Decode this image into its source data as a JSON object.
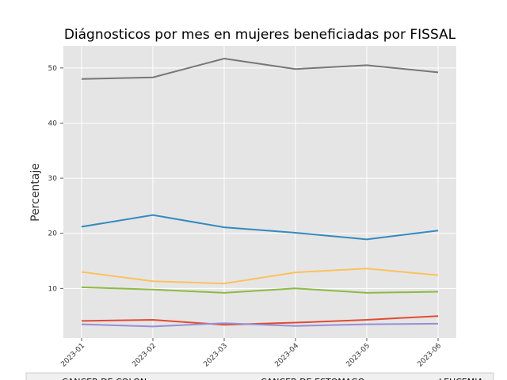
{
  "chart_data": {
    "type": "line",
    "title": "Diágnosticos por mes en mujeres beneficiadas por FISSAL",
    "xlabel": "",
    "ylabel": "Percentaje",
    "categories": [
      "2023-01",
      "2023-02",
      "2023-03",
      "2023-04",
      "2023-05",
      "2023-06"
    ],
    "ylim": [
      1,
      54
    ],
    "yticks": [
      10,
      20,
      30,
      40,
      50
    ],
    "grid": true,
    "legend_position": "bottom",
    "series": [
      {
        "values": [
          48.0,
          48.3,
          51.7,
          49.8,
          50.5,
          49.2
        ],
        "color": "#777777"
      },
      {
        "values": [
          21.2,
          23.3,
          21.1,
          20.1,
          18.9,
          20.5
        ],
        "color": "#348abd"
      },
      {
        "values": [
          13.0,
          11.3,
          10.9,
          12.9,
          13.6,
          12.4
        ],
        "color": "#fbc15e"
      },
      {
        "values": [
          10.2,
          9.8,
          9.2,
          10.0,
          9.2,
          9.4
        ],
        "color": "#8eba42"
      },
      {
        "name": "CANCER DE COLON",
        "values": [
          4.1,
          4.3,
          3.4,
          3.8,
          4.3,
          5.0
        ],
        "color": "#e24a33"
      },
      {
        "name": "CANCER DE ESTOMAGO",
        "values": [
          3.5,
          3.1,
          3.7,
          3.2,
          3.5,
          3.6
        ],
        "color": "#988ed5"
      }
    ],
    "legend_visible_labels": [
      "CANCER DE COLON",
      "CANCER DE ESTOMAGO",
      "LEUCEMIA"
    ],
    "legend_visible_colors": [
      "#e24a33",
      "#988ed5",
      "#777777"
    ]
  }
}
